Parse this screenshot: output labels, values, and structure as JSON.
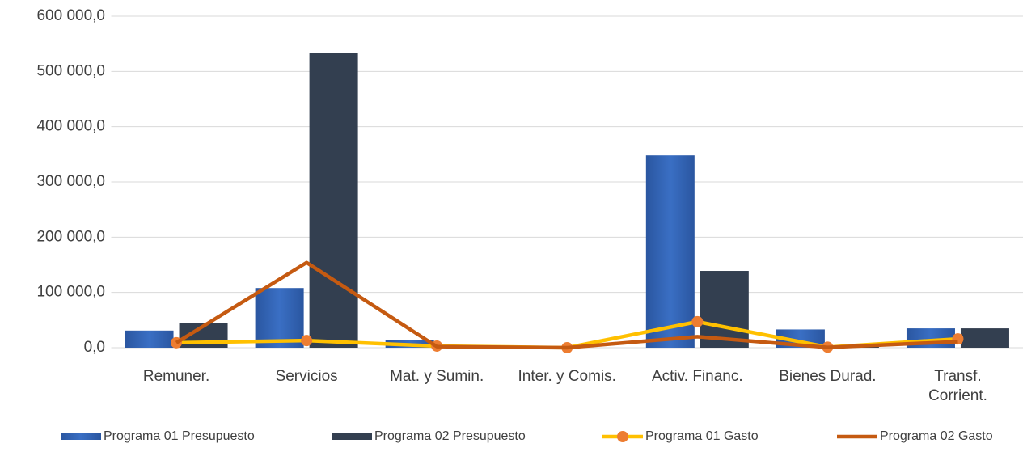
{
  "chart_data": {
    "type": "bar",
    "categories": [
      "Remuner.",
      "Servicios",
      "Mat. y Sumin.",
      "Inter. y Comis.",
      "Activ. Financ.",
      "Bienes Durad.",
      "Transf.\nCorrient."
    ],
    "series": [
      {
        "name": "Programa 01 Presupuesto",
        "type": "bar",
        "color": "#2f5fae",
        "values": [
          31000,
          108000,
          14000,
          0,
          348000,
          33000,
          35000
        ]
      },
      {
        "name": "Programa 02 Presupuesto",
        "type": "bar",
        "color": "#333f50",
        "values": [
          44000,
          534000,
          3000,
          0,
          139000,
          2000,
          35000
        ]
      },
      {
        "name": "Programa 01 Gasto",
        "type": "line",
        "color": "#ffc000",
        "marker_color": "#ed7d31",
        "values": [
          9000,
          13000,
          3000,
          0,
          47000,
          1000,
          16000
        ]
      },
      {
        "name": "Programa 02 Gasto",
        "type": "line",
        "color": "#c55a11",
        "values": [
          9000,
          154000,
          2000,
          0,
          20000,
          500,
          11000
        ]
      }
    ],
    "ylim": [
      0,
      600000
    ],
    "yticks": [
      {
        "value": 0,
        "label": "0,0"
      },
      {
        "value": 100000,
        "label": "100 000,0"
      },
      {
        "value": 200000,
        "label": "200 000,0"
      },
      {
        "value": 300000,
        "label": "300 000,0"
      },
      {
        "value": 400000,
        "label": "400 000,0"
      },
      {
        "value": 500000,
        "label": "500 000,0"
      },
      {
        "value": 600000,
        "label": "600 000,0"
      }
    ],
    "grid": true,
    "legend": "bottom"
  }
}
